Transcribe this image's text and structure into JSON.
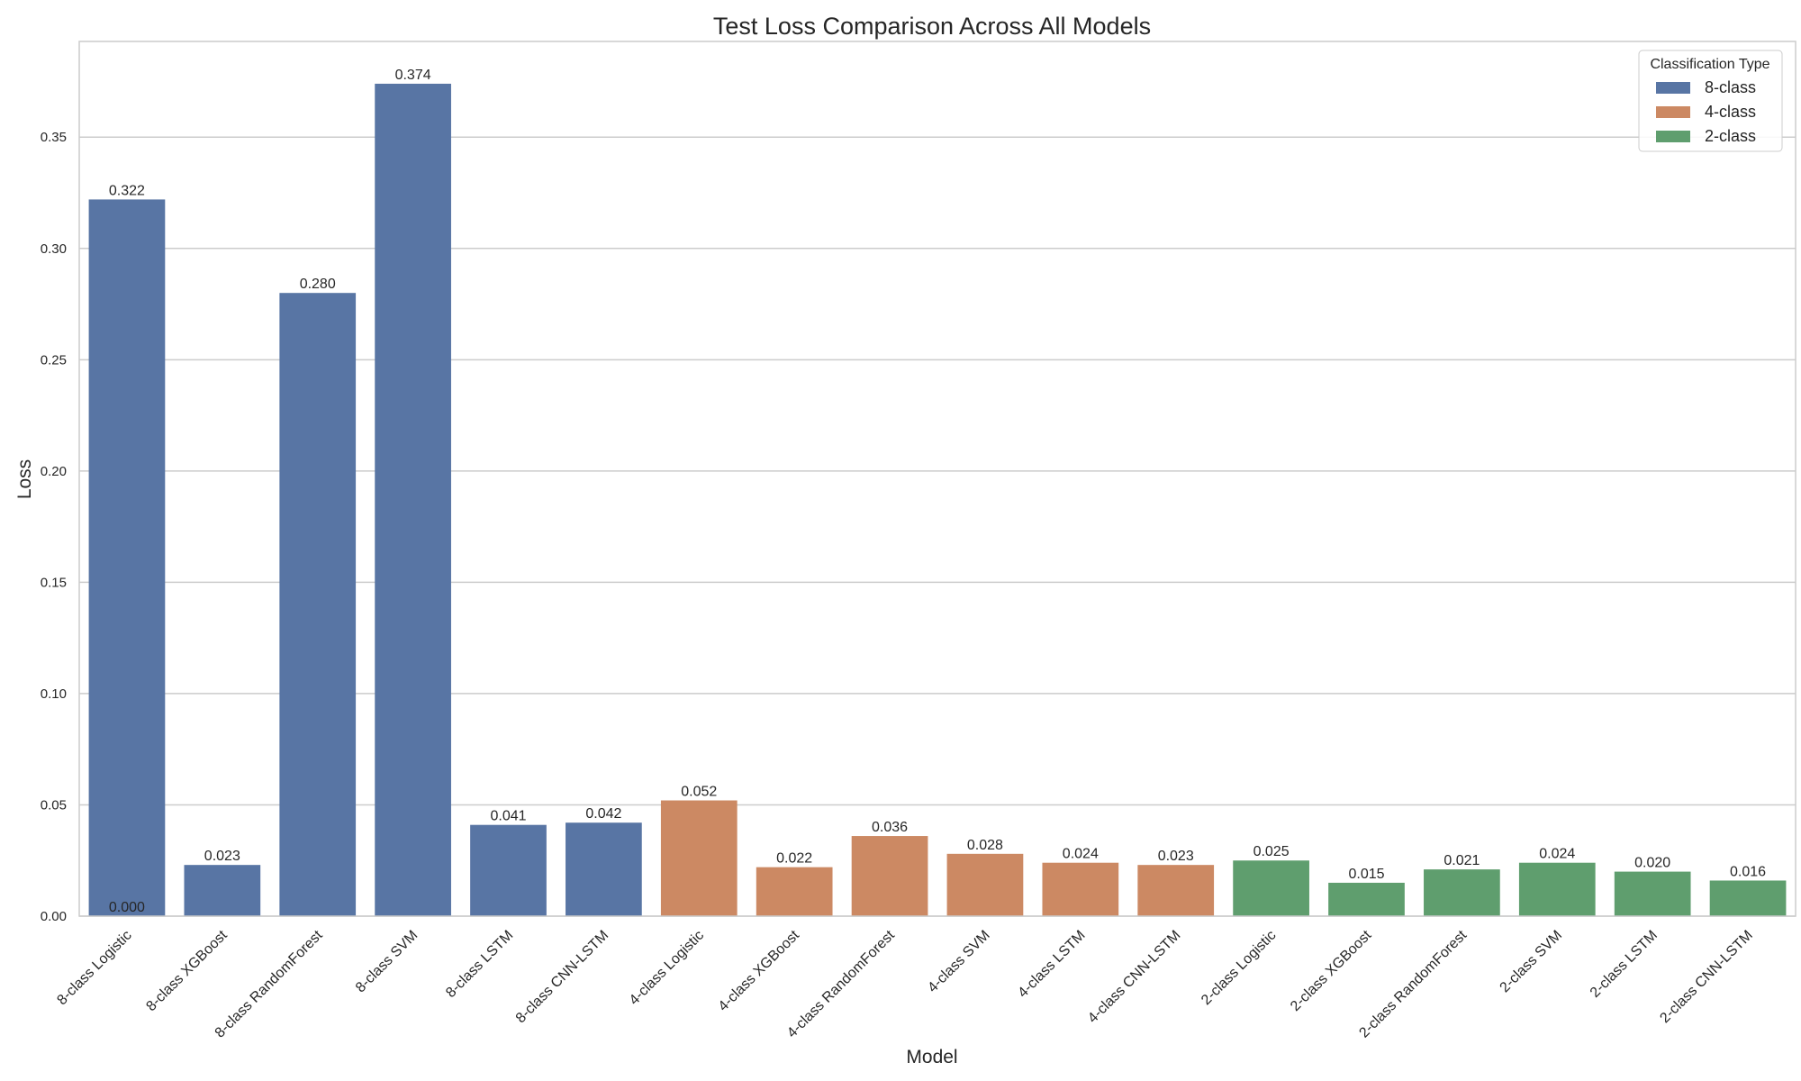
{
  "chart_data": {
    "type": "bar",
    "title": "Test Loss Comparison Across All Models",
    "xlabel": "Model",
    "ylabel": "Loss",
    "ylim": [
      0,
      0.393
    ],
    "yticks": [
      0.0,
      0.05,
      0.1,
      0.15,
      0.2,
      0.25,
      0.3,
      0.35
    ],
    "ytick_labels": [
      "0.00",
      "0.05",
      "0.10",
      "0.15",
      "0.20",
      "0.25",
      "0.30",
      "0.35"
    ],
    "grid": true,
    "legend": {
      "title": "Classification Type",
      "placement": "top-right",
      "entries": [
        {
          "label": "8-class",
          "color": "#5875a4"
        },
        {
          "label": "4-class",
          "color": "#cc8963"
        },
        {
          "label": "2-class",
          "color": "#5f9e6e"
        }
      ]
    },
    "categories": [
      "8-class Logistic",
      "8-class XGBoost",
      "8-class RandomForest",
      "8-class SVM",
      "8-class LSTM",
      "8-class CNN-LSTM",
      "4-class Logistic",
      "4-class XGBoost",
      "4-class RandomForest",
      "4-class SVM",
      "4-class LSTM",
      "4-class CNN-LSTM",
      "2-class Logistic",
      "2-class XGBoost",
      "2-class RandomForest",
      "2-class SVM",
      "2-class LSTM",
      "2-class CNN-LSTM"
    ],
    "values": [
      0.322,
      0.023,
      0.28,
      0.374,
      0.041,
      0.042,
      0.052,
      0.022,
      0.036,
      0.028,
      0.024,
      0.023,
      0.025,
      0.015,
      0.021,
      0.024,
      0.02,
      0.016
    ],
    "bar_labels": [
      "0.322",
      "0.023",
      "0.280",
      "0.374",
      "0.041",
      "0.042",
      "0.052",
      "0.022",
      "0.036",
      "0.028",
      "0.024",
      "0.023",
      "0.025",
      "0.015",
      "0.021",
      "0.024",
      "0.020",
      "0.016"
    ],
    "groups": [
      "8-class",
      "8-class",
      "8-class",
      "8-class",
      "8-class",
      "8-class",
      "4-class",
      "4-class",
      "4-class",
      "4-class",
      "4-class",
      "4-class",
      "2-class",
      "2-class",
      "2-class",
      "2-class",
      "2-class",
      "2-class"
    ],
    "annotations": [
      {
        "text": "0.000",
        "x_category": "8-class Logistic",
        "y": 0.0
      }
    ]
  }
}
